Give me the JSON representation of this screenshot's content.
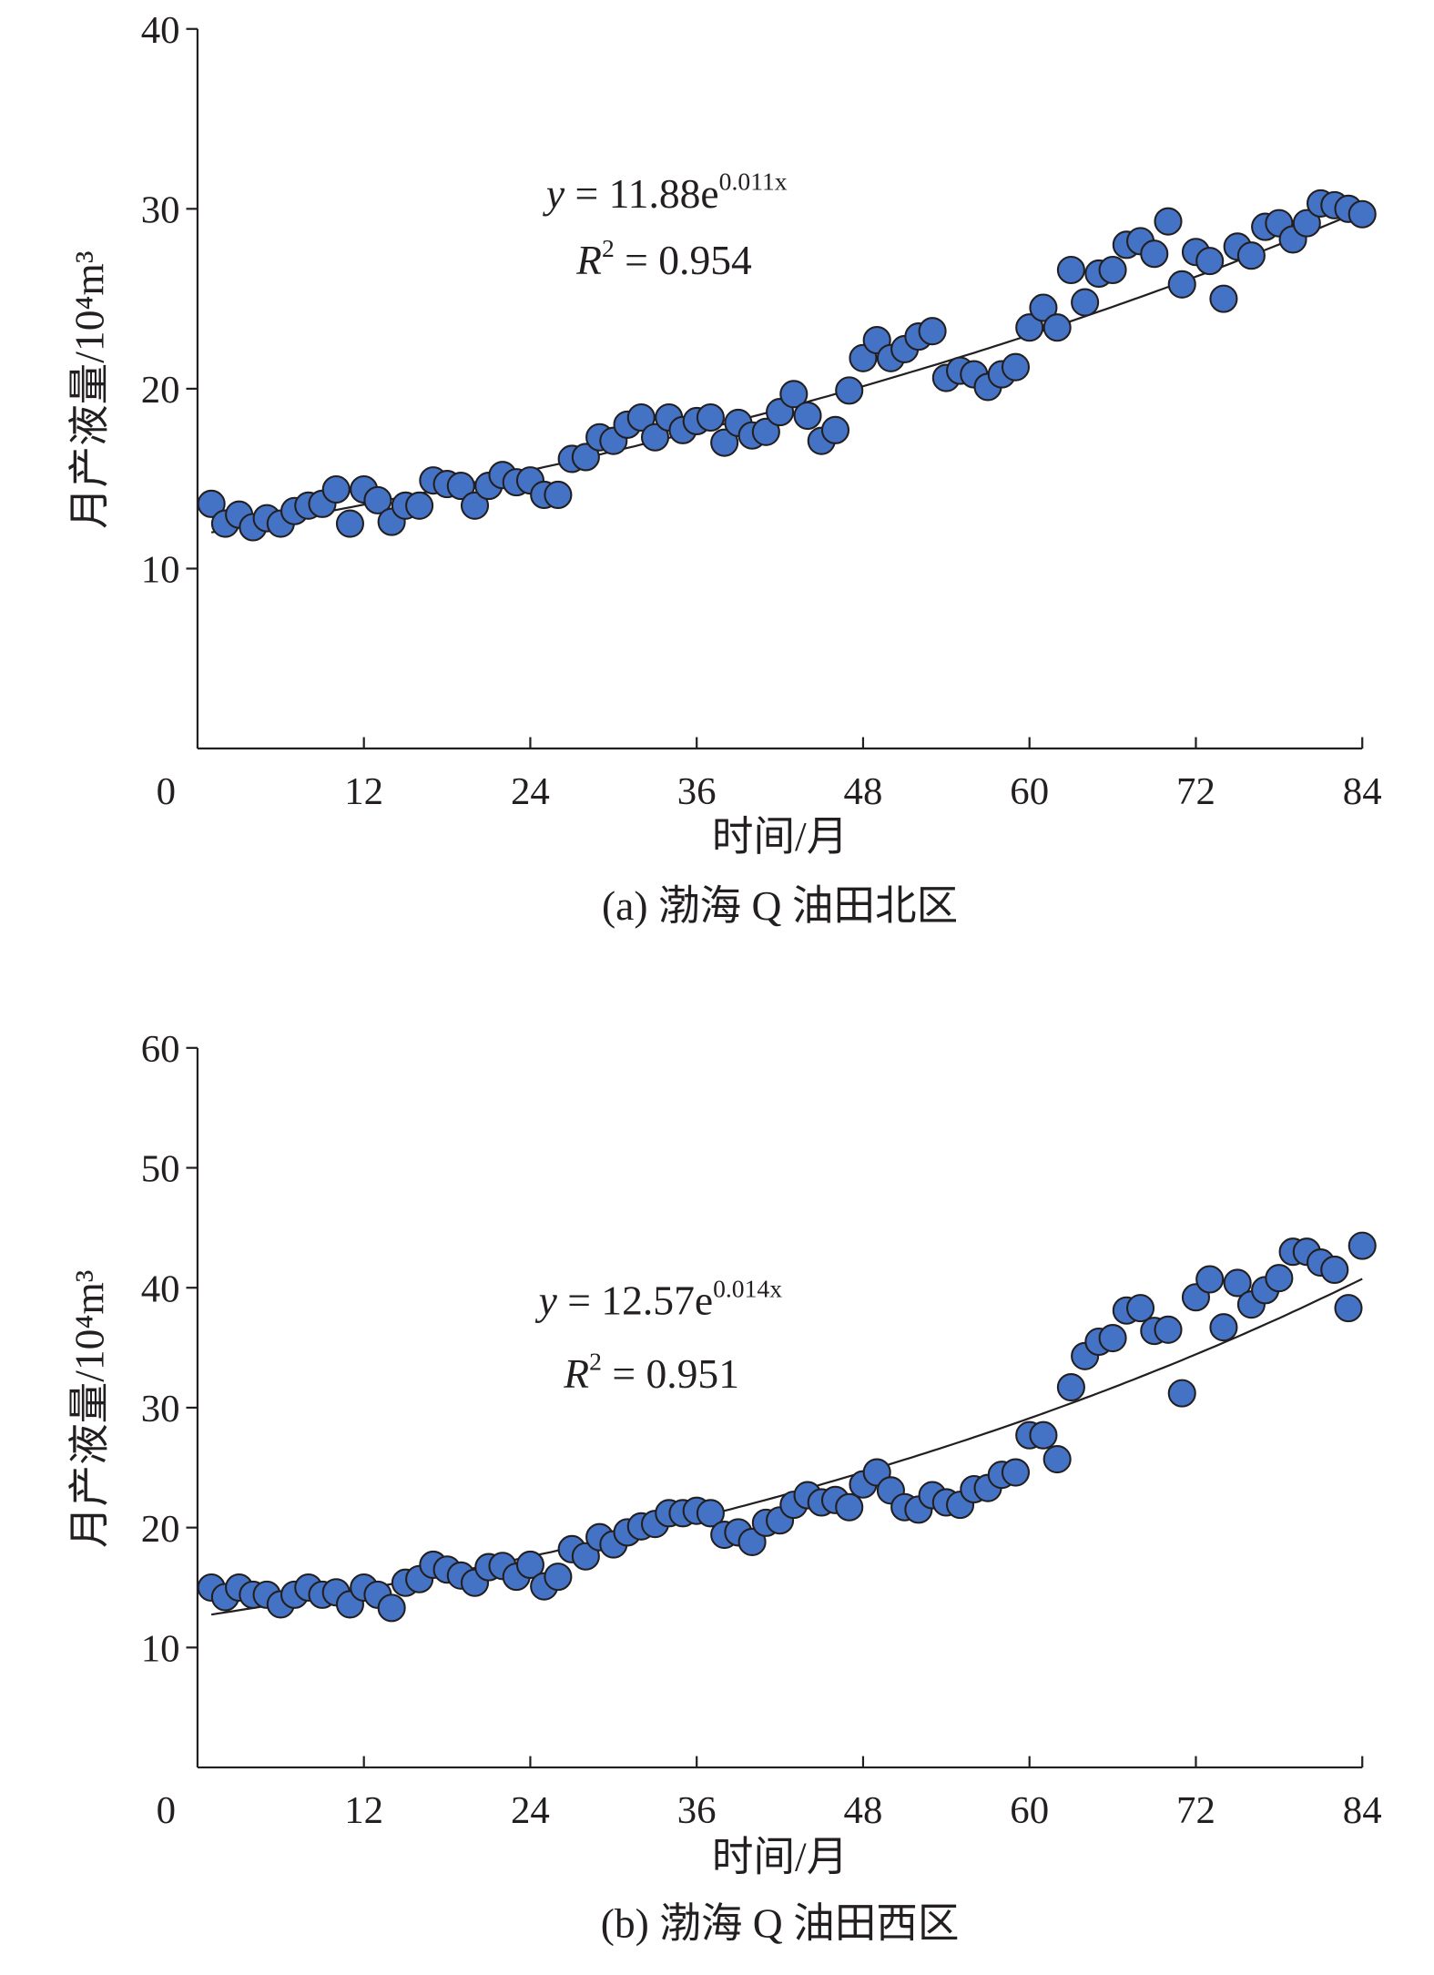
{
  "chart_data": [
    {
      "type": "scatter",
      "caption": "(a) 渤海 Q 油田北区",
      "xlabel": "时间/月",
      "ylabel": "月产液量/10⁴m³",
      "origin_label": "0",
      "xlim": [
        0,
        84
      ],
      "ylim": [
        0,
        40
      ],
      "xticks": [
        12,
        24,
        36,
        48,
        60,
        72,
        84
      ],
      "yticks": [
        10,
        20,
        30,
        40
      ],
      "marker_color": "#4472C4",
      "fit": {
        "a": 11.88,
        "b": 0.011,
        "eq_lhs": "y",
        "eq_rhs": " = 11.88e",
        "eq_exp": "0.011x",
        "r2_label": "R",
        "r2_value": " = 0.954"
      },
      "x": [
        1,
        2,
        3,
        4,
        5,
        6,
        7,
        8,
        9,
        10,
        11,
        12,
        13,
        14,
        15,
        16,
        17,
        18,
        19,
        20,
        21,
        22,
        23,
        24,
        25,
        26,
        27,
        28,
        29,
        30,
        31,
        32,
        33,
        34,
        35,
        36,
        37,
        38,
        39,
        40,
        41,
        42,
        43,
        44,
        45,
        46,
        47,
        48,
        49,
        50,
        51,
        52,
        53,
        54,
        55,
        56,
        57,
        58,
        59,
        60,
        61,
        62,
        63,
        64,
        65,
        66,
        67,
        68,
        69,
        70,
        71,
        72,
        73,
        74,
        75,
        76,
        77,
        78,
        79,
        80,
        81,
        82,
        83,
        84
      ],
      "y": [
        13.6,
        12.5,
        13.0,
        12.3,
        12.8,
        12.5,
        13.2,
        13.5,
        13.6,
        14.4,
        12.5,
        14.4,
        13.8,
        12.6,
        13.5,
        13.5,
        14.9,
        14.7,
        14.6,
        13.5,
        14.6,
        15.2,
        14.8,
        14.9,
        14.1,
        14.1,
        16.1,
        16.2,
        17.3,
        17.1,
        18.0,
        18.4,
        17.3,
        18.4,
        17.7,
        18.2,
        18.4,
        17.0,
        18.1,
        17.4,
        17.6,
        18.7,
        19.7,
        18.5,
        17.1,
        17.7,
        19.9,
        21.7,
        22.7,
        21.7,
        22.2,
        22.9,
        23.2,
        20.6,
        21.0,
        20.8,
        20.1,
        20.8,
        21.2,
        23.4,
        24.5,
        23.4,
        26.6,
        24.8,
        26.4,
        26.6,
        28.0,
        28.2,
        27.5,
        29.3,
        25.8,
        27.6,
        27.1,
        25.0,
        27.9,
        27.4,
        29.0,
        29.2,
        28.3,
        29.2,
        30.3,
        30.2,
        30.0,
        29.7
      ]
    },
    {
      "type": "scatter",
      "caption": "(b) 渤海 Q 油田西区",
      "xlabel": "时间/月",
      "ylabel": "月产液量/10⁴m³",
      "origin_label": "0",
      "xlim": [
        0,
        84
      ],
      "ylim": [
        0,
        60
      ],
      "xticks": [
        12,
        24,
        36,
        48,
        60,
        72,
        84
      ],
      "yticks": [
        10,
        20,
        30,
        40,
        50,
        60
      ],
      "marker_color": "#4472C4",
      "fit": {
        "a": 12.57,
        "b": 0.014,
        "eq_lhs": "y",
        "eq_rhs": " = 12.57e",
        "eq_exp": "0.014x",
        "r2_label": "R",
        "r2_value": " = 0.951"
      },
      "x": [
        1,
        2,
        3,
        4,
        5,
        6,
        7,
        8,
        9,
        10,
        11,
        12,
        13,
        14,
        15,
        16,
        17,
        18,
        19,
        20,
        21,
        22,
        23,
        24,
        25,
        26,
        27,
        28,
        29,
        30,
        31,
        32,
        33,
        34,
        35,
        36,
        37,
        38,
        39,
        40,
        41,
        42,
        43,
        44,
        45,
        46,
        47,
        48,
        49,
        50,
        51,
        52,
        53,
        54,
        55,
        56,
        57,
        58,
        59,
        60,
        61,
        62,
        63,
        64,
        65,
        66,
        67,
        68,
        69,
        70,
        71,
        72,
        73,
        74,
        75,
        76,
        77,
        78,
        79,
        80,
        81,
        82,
        83,
        84
      ],
      "y": [
        15.0,
        14.2,
        15.0,
        14.4,
        14.4,
        13.6,
        14.4,
        15.0,
        14.4,
        14.6,
        13.6,
        15.0,
        14.4,
        13.3,
        15.4,
        15.7,
        16.9,
        16.5,
        16.0,
        15.4,
        16.7,
        16.8,
        15.9,
        16.9,
        15.1,
        15.9,
        18.2,
        17.6,
        19.2,
        18.6,
        19.6,
        20.1,
        20.3,
        21.2,
        21.2,
        21.4,
        21.2,
        19.4,
        19.6,
        18.8,
        20.4,
        20.6,
        21.9,
        22.7,
        22.1,
        22.3,
        21.7,
        23.6,
        24.6,
        23.1,
        21.7,
        21.5,
        22.7,
        22.1,
        21.9,
        23.2,
        23.3,
        24.4,
        24.6,
        27.7,
        27.7,
        25.7,
        31.7,
        34.3,
        35.5,
        35.8,
        38.1,
        38.3,
        36.4,
        36.5,
        31.2,
        39.2,
        40.7,
        36.7,
        40.4,
        38.6,
        39.8,
        40.8,
        43.0,
        43.0,
        42.1,
        41.5,
        38.3,
        43.5
      ]
    }
  ]
}
